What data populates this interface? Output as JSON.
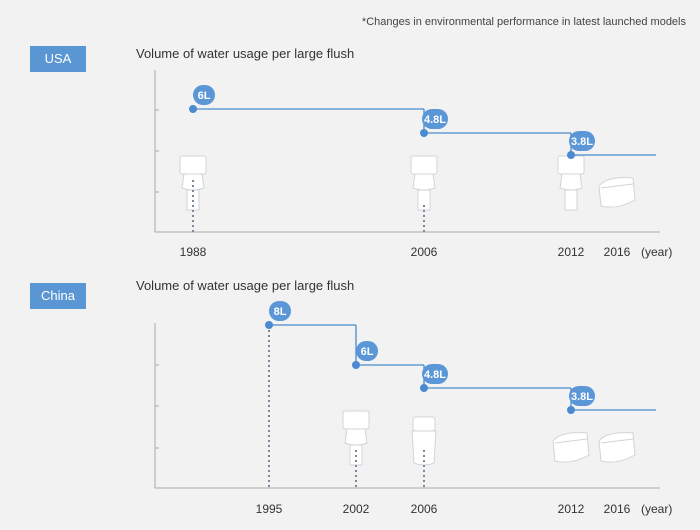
{
  "note": "*Changes in environmental performance in latest launched models",
  "colors": {
    "accent": "#4a8ad0",
    "badge": "#5b97d6",
    "axis": "#aaaaaa",
    "dotted": "#7a8a9a",
    "toilet": "#ffffff"
  },
  "chart_data": [
    {
      "type": "line",
      "region": "USA",
      "title": "Volume of water usage per large flush",
      "x_unit": "(year)",
      "x_ticks": [
        "1988",
        "2006",
        "2012",
        "2016"
      ],
      "steps": [
        {
          "year": "1988",
          "value": 6,
          "label": "6L"
        },
        {
          "year": "2006",
          "value": 4.8,
          "label": "4.8L"
        },
        {
          "year": "2012",
          "value": 3.8,
          "label": "3.8L"
        }
      ],
      "toilets": [
        {
          "year": "1988",
          "icon": "tank-toilet-icon"
        },
        {
          "year": "2006",
          "icon": "tank-toilet-icon"
        },
        {
          "year": "2012",
          "icon": "tank-toilet-icon"
        },
        {
          "year": "2016",
          "icon": "tankless-toilet-icon"
        }
      ]
    },
    {
      "type": "line",
      "region": "China",
      "title": "Volume of water usage per large flush",
      "x_unit": "(year)",
      "x_ticks": [
        "1995",
        "2002",
        "2006",
        "2012",
        "2016"
      ],
      "steps": [
        {
          "year": "1995",
          "value": 8,
          "label": "8L"
        },
        {
          "year": "2002",
          "value": 6,
          "label": "6L"
        },
        {
          "year": "2006",
          "value": 4.8,
          "label": "4.8L"
        },
        {
          "year": "2012",
          "value": 3.8,
          "label": "3.8L"
        }
      ],
      "toilets": [
        {
          "year": "2002",
          "icon": "tank-toilet-icon"
        },
        {
          "year": "2006",
          "icon": "one-piece-toilet-icon"
        },
        {
          "year": "2012",
          "icon": "tankless-toilet-icon"
        },
        {
          "year": "2016",
          "icon": "tankless-toilet-icon"
        }
      ]
    }
  ]
}
